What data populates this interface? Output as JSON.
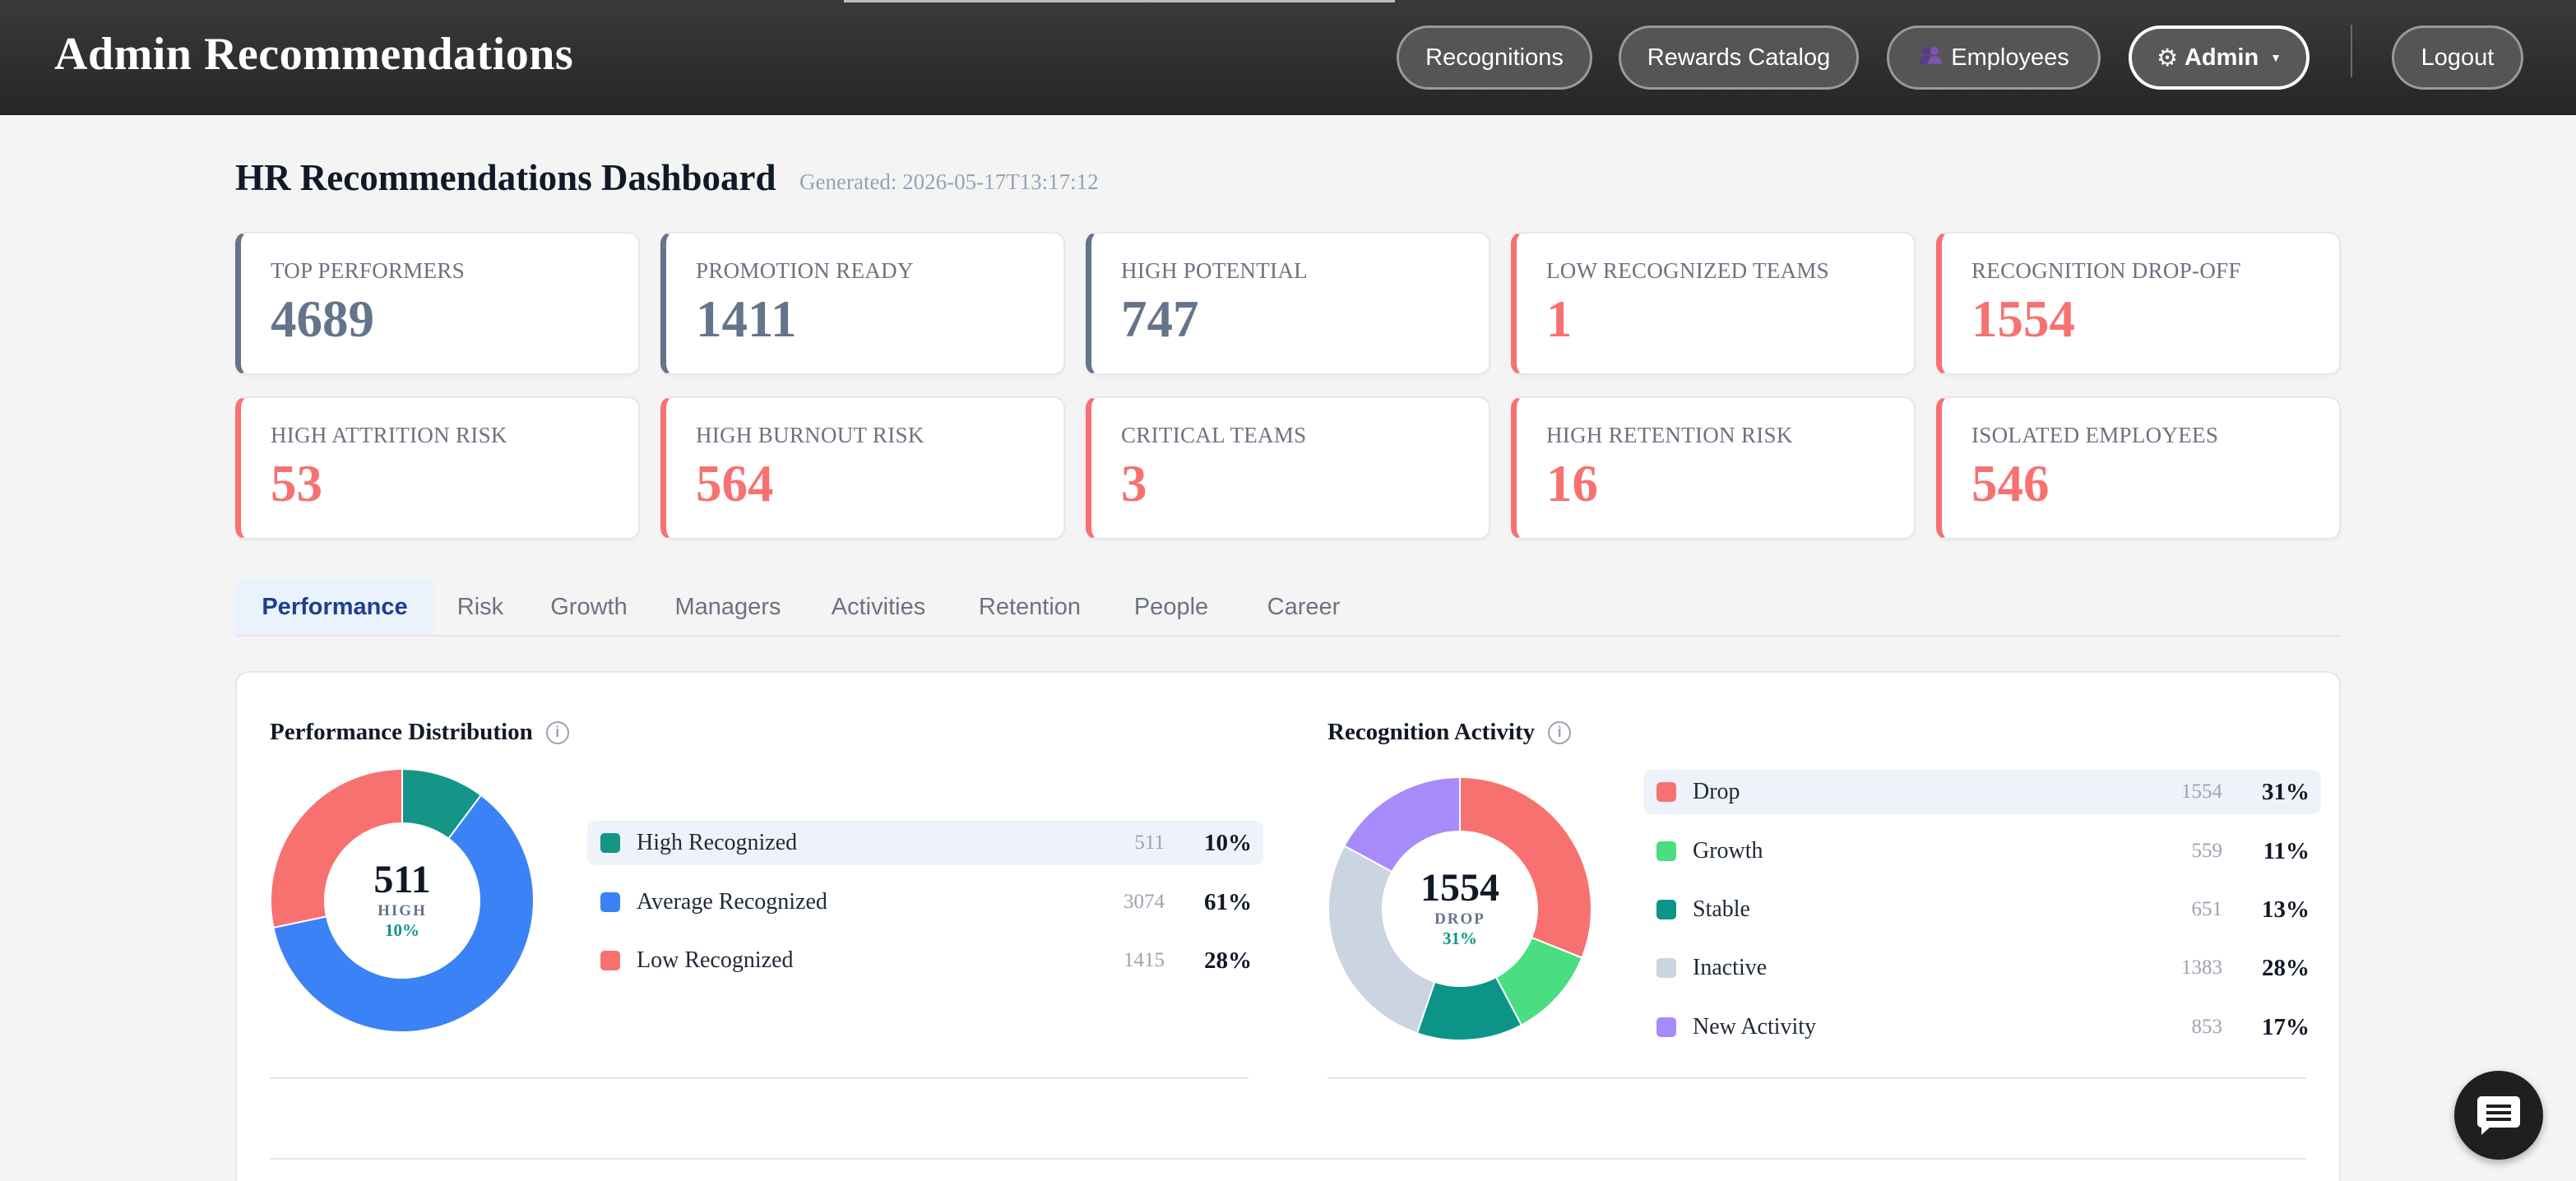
{
  "app": {
    "title": "Admin Recommendations"
  },
  "nav": {
    "recognitions": "Recognitions",
    "rewards": "Rewards Catalog",
    "employees": "Employees",
    "admin": "Admin",
    "logout": "Logout"
  },
  "page": {
    "title": "HR Recommendations Dashboard",
    "generated": "Generated: 2026-05-17T13:17:12"
  },
  "stats": [
    {
      "label": "TOP PERFORMERS",
      "value": "4689",
      "tone": "neutral"
    },
    {
      "label": "PROMOTION READY",
      "value": "1411",
      "tone": "neutral"
    },
    {
      "label": "HIGH POTENTIAL",
      "value": "747",
      "tone": "neutral"
    },
    {
      "label": "LOW RECOGNIZED TEAMS",
      "value": "1",
      "tone": "alert"
    },
    {
      "label": "RECOGNITION DROP-OFF",
      "value": "1554",
      "tone": "alert"
    },
    {
      "label": "HIGH ATTRITION RISK",
      "value": "53",
      "tone": "alert"
    },
    {
      "label": "HIGH BURNOUT RISK",
      "value": "564",
      "tone": "alert"
    },
    {
      "label": "CRITICAL TEAMS",
      "value": "3",
      "tone": "alert"
    },
    {
      "label": "HIGH RETENTION RISK",
      "value": "16",
      "tone": "alert"
    },
    {
      "label": "ISOLATED EMPLOYEES",
      "value": "546",
      "tone": "alert"
    }
  ],
  "tabs": [
    "Performance",
    "Risk",
    "Growth",
    "Managers",
    "Activities",
    "Retention",
    "People",
    "Career"
  ],
  "active_tab": "Performance",
  "performance": {
    "title": "Performance Distribution",
    "center": {
      "value": "511",
      "label": "HIGH",
      "pct": "10%"
    },
    "items": [
      {
        "name": "High Recognized",
        "count": 511,
        "pct": "10%",
        "color": "#159488"
      },
      {
        "name": "Average Recognized",
        "count": 3074,
        "pct": "61%",
        "color": "#3b82f6"
      },
      {
        "name": "Low Recognized",
        "count": 1415,
        "pct": "28%",
        "color": "#f87171"
      }
    ]
  },
  "recognition": {
    "title": "Recognition Activity",
    "center": {
      "value": "1554",
      "label": "DROP",
      "pct": "31%"
    },
    "items": [
      {
        "name": "Drop",
        "count": 1554,
        "pct": "31%",
        "color": "#f87171"
      },
      {
        "name": "Growth",
        "count": 559,
        "pct": "11%",
        "color": "#4ade80"
      },
      {
        "name": "Stable",
        "count": 651,
        "pct": "13%",
        "color": "#0d9488"
      },
      {
        "name": "Inactive",
        "count": 1383,
        "pct": "28%",
        "color": "#cbd5e1"
      },
      {
        "name": "New Activity",
        "count": 853,
        "pct": "17%",
        "color": "#a78bfa"
      }
    ]
  },
  "icons": {
    "employees": "people-icon",
    "admin": "gear-icon",
    "info": "info-icon",
    "chat": "chat-icon"
  }
}
